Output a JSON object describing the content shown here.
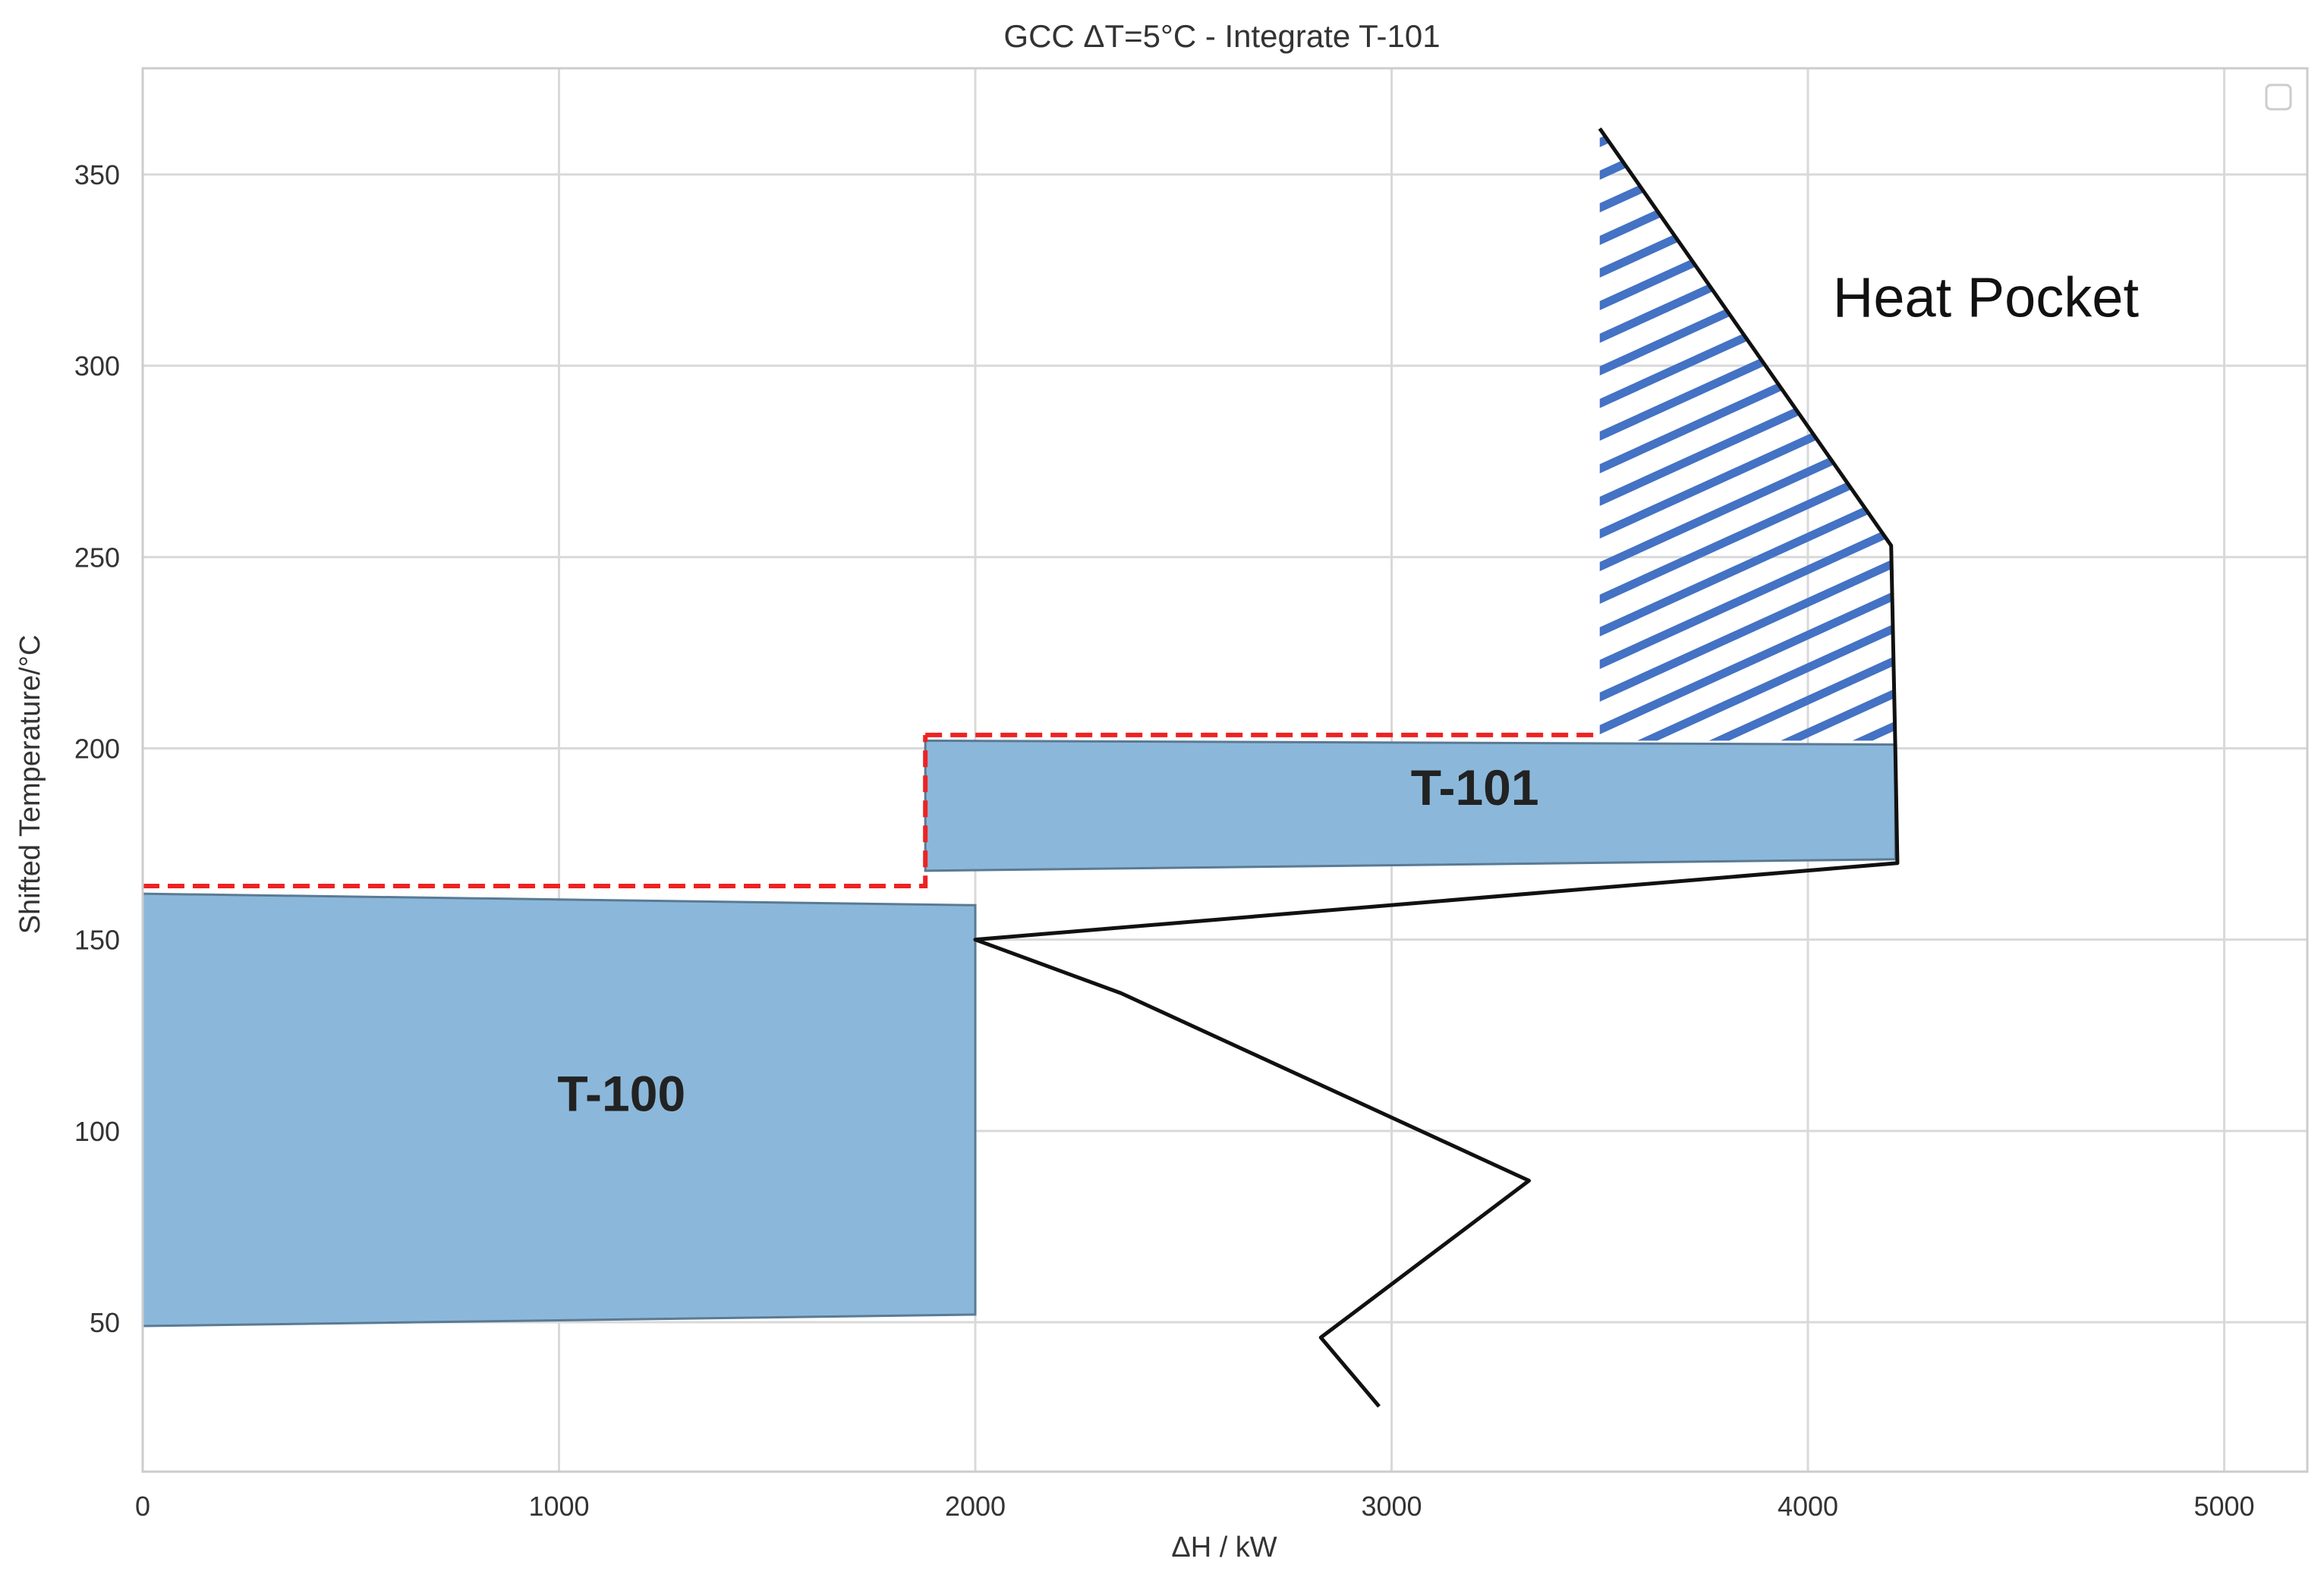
{
  "chart_data": {
    "type": "line",
    "title": "GCC ΔT=5°C - Integrate T-101",
    "xlabel": "ΔH / kW",
    "ylabel": "Shifted Temperature/°C",
    "xlim": [
      0,
      5200
    ],
    "ylim": [
      12,
      378
    ],
    "xticks": [
      0,
      1000,
      2000,
      3000,
      4000,
      5000
    ],
    "yticks": [
      50,
      100,
      150,
      200,
      250,
      300,
      350
    ],
    "grid": true,
    "legend": {
      "placement": "top-right",
      "entries": []
    },
    "colors": {
      "background": "#ffffff",
      "grid": "#d9d9d9",
      "axes_edge": "#cccccc",
      "gcc_line": "#111111",
      "region_fill": "#8bb8da",
      "region_edge": "#5a7a94",
      "target_line": "#ee2222",
      "hatch": "#4472c4",
      "text": "#333333"
    },
    "gcc_curve": {
      "x": [
        3500,
        4200,
        4210,
        4215,
        2000,
        2350,
        3330,
        2830,
        2970
      ],
      "y": [
        362,
        253,
        200,
        170,
        150,
        136,
        87,
        46,
        28
      ]
    },
    "regions": [
      {
        "name": "T-100",
        "polygon": {
          "x": [
            0,
            2000,
            2000,
            0
          ],
          "y": [
            162,
            159,
            52,
            49
          ]
        },
        "label": "T-100",
        "label_pos": {
          "x": 1150,
          "y": 110
        }
      },
      {
        "name": "T-101",
        "polygon": {
          "x": [
            1880,
            4210,
            4210,
            1880
          ],
          "y": [
            202,
            201,
            171,
            168
          ]
        },
        "label": "T-101",
        "label_pos": {
          "x": 3200,
          "y": 190
        }
      }
    ],
    "target_lines": [
      {
        "x": [
          0,
          1880,
          1880
        ],
        "y": [
          164,
          164,
          203.5
        ]
      },
      {
        "x": [
          1880,
          3500
        ],
        "y": [
          203.5,
          203.5
        ]
      }
    ],
    "heat_pocket": {
      "label": "Heat Pocket",
      "label_pos": {
        "x": 4060,
        "y": 318
      },
      "polygon": {
        "x": [
          3500,
          4200,
          4210,
          3500
        ],
        "y": [
          362,
          253,
          202,
          202
        ]
      }
    }
  }
}
